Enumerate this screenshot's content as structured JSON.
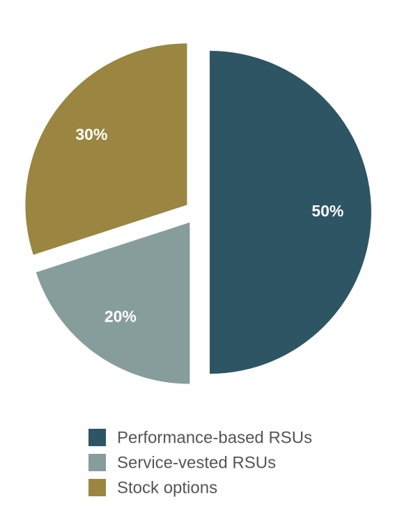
{
  "chart_data": {
    "type": "pie",
    "categories": [
      "Performance-based RSUs",
      "Service-vested RSUs",
      "Stock options"
    ],
    "values": [
      50,
      20,
      30
    ],
    "value_labels": [
      "50%",
      "20%",
      "30%"
    ],
    "colors": [
      "#2e5563",
      "#879d9b",
      "#9a8641"
    ],
    "legend": "bottom"
  }
}
